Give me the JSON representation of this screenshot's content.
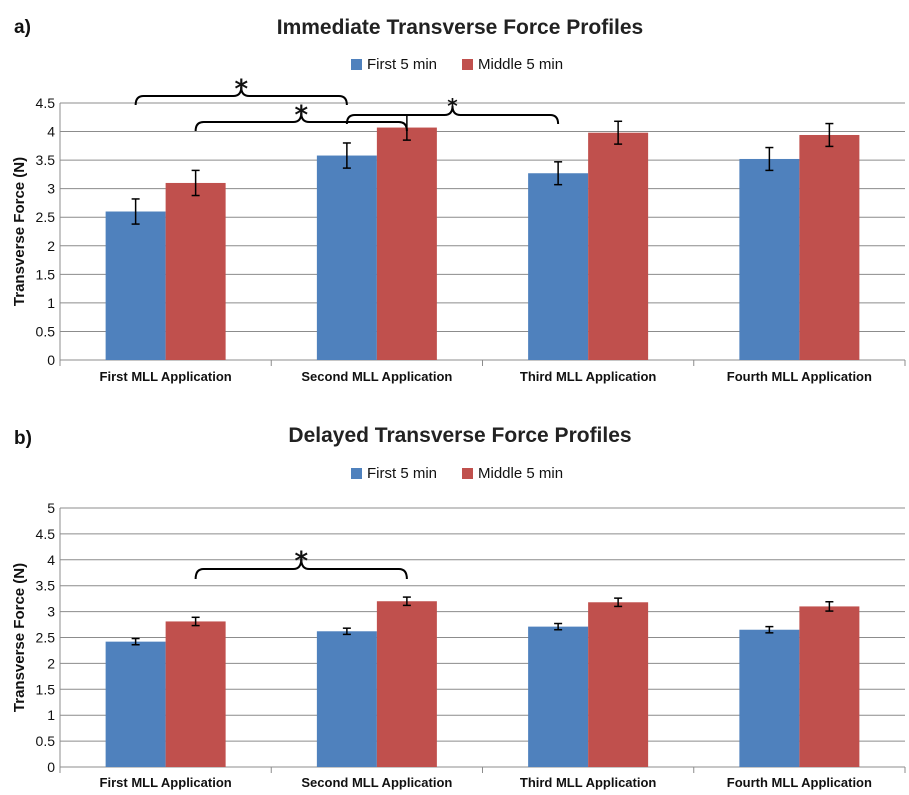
{
  "chart_data": [
    {
      "panel_label": "a)",
      "type": "bar",
      "title": "Immediate Transverse Force Profiles",
      "ylabel": "Transverse Force (N)",
      "ylim": [
        0,
        4.5
      ],
      "yticks": [
        "0",
        "0.5",
        "1",
        "1.5",
        "2",
        "2.5",
        "3",
        "3.5",
        "4",
        "4.5"
      ],
      "grid": true,
      "legend_position": "top",
      "categories": [
        "First MLL Application",
        "Second MLL Application",
        "Third MLL Application",
        "Fourth MLL Application"
      ],
      "series": [
        {
          "name": "First 5 min",
          "color": "#4f81bd",
          "values": [
            2.6,
            3.58,
            3.27,
            3.52
          ],
          "errors": [
            0.22,
            0.22,
            0.2,
            0.2
          ]
        },
        {
          "name": "Middle 5 min",
          "color": "#c0504d",
          "values": [
            3.1,
            4.07,
            3.98,
            3.94
          ],
          "errors": [
            0.22,
            0.22,
            0.2,
            0.2
          ]
        }
      ],
      "significance": [
        {
          "from_category": 0,
          "from_series": 0,
          "to_category": 1,
          "to_series": 0,
          "label": "*"
        },
        {
          "from_category": 0,
          "from_series": 1,
          "to_category": 1,
          "to_series": 1,
          "label": "*"
        },
        {
          "from_category": 1,
          "from_series": 0,
          "to_category": 2,
          "to_series": 0,
          "label": "*"
        }
      ]
    },
    {
      "panel_label": "b)",
      "type": "bar",
      "title": "Delayed Transverse Force Profiles",
      "ylabel": "Transverse Force (N)",
      "ylim": [
        0,
        5
      ],
      "yticks": [
        "0",
        "0.5",
        "1",
        "1.5",
        "2",
        "2.5",
        "3",
        "3.5",
        "4",
        "4.5",
        "5"
      ],
      "grid": true,
      "legend_position": "top",
      "categories": [
        "First MLL Application",
        "Second MLL Application",
        "Third MLL Application",
        "Fourth MLL Application"
      ],
      "series": [
        {
          "name": "First 5 min",
          "color": "#4f81bd",
          "values": [
            2.42,
            2.62,
            2.71,
            2.65
          ],
          "errors": [
            0.06,
            0.06,
            0.06,
            0.06
          ]
        },
        {
          "name": "Middle 5 min",
          "color": "#c0504d",
          "values": [
            2.81,
            3.2,
            3.18,
            3.1
          ],
          "errors": [
            0.08,
            0.08,
            0.08,
            0.09
          ]
        }
      ],
      "significance": [
        {
          "from_category": 0,
          "from_series": 1,
          "to_category": 1,
          "to_series": 1,
          "label": "*"
        }
      ]
    }
  ]
}
